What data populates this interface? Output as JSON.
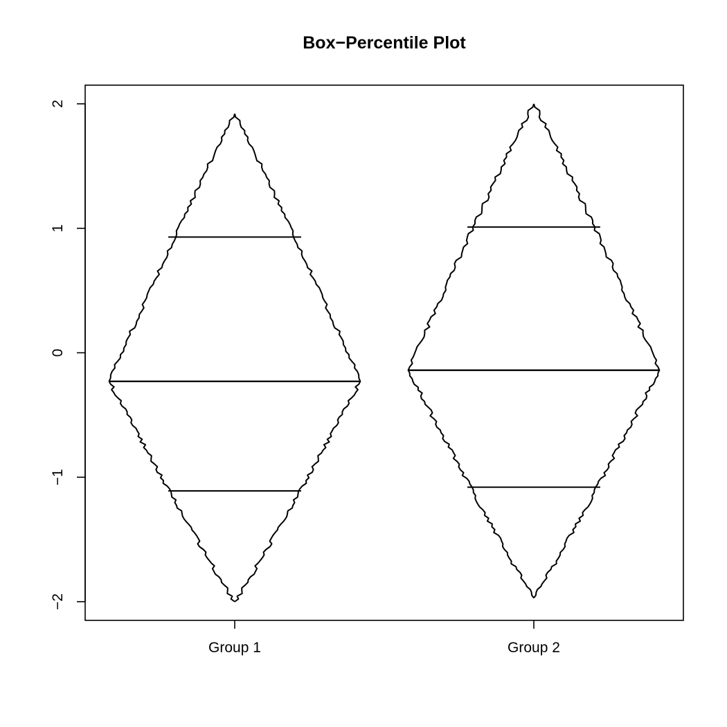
{
  "chart_data": {
    "type": "box-percentile",
    "title": "Box−Percentile Plot",
    "xlabel": "",
    "ylabel": "",
    "categories": [
      "Group 1",
      "Group 2"
    ],
    "ylim": [
      -2.15,
      2.15
    ],
    "yticks": [
      -2,
      -1,
      0,
      1,
      2
    ],
    "ytick_labels": [
      "−2",
      "−1",
      "0",
      "1",
      "2"
    ],
    "series": [
      {
        "category": "Group 1",
        "min": -2.0,
        "q1": -1.11,
        "median": -0.23,
        "q3": 0.93,
        "max": 1.92
      },
      {
        "category": "Group 2",
        "min": -1.97,
        "q1": -1.08,
        "median": -0.14,
        "q3": 1.01,
        "max": 2.0
      }
    ]
  }
}
